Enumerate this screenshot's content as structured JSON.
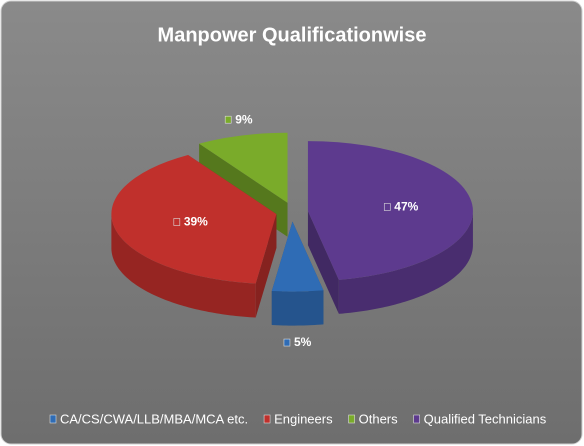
{
  "chart_data": {
    "type": "pie",
    "title": "Manpower Qualificationwise",
    "categories": [
      "CA/CS/CWA/LLB/MBA/MCA etc.",
      "Engineers",
      "Others",
      "Qualified Technicians"
    ],
    "values": [
      5,
      39,
      9,
      47
    ],
    "value_labels": [
      "5%",
      "39%",
      "9%",
      "47%"
    ],
    "colors": [
      "#2f6cb5",
      "#c0302c",
      "#7aab2a",
      "#5d3a8e"
    ]
  }
}
